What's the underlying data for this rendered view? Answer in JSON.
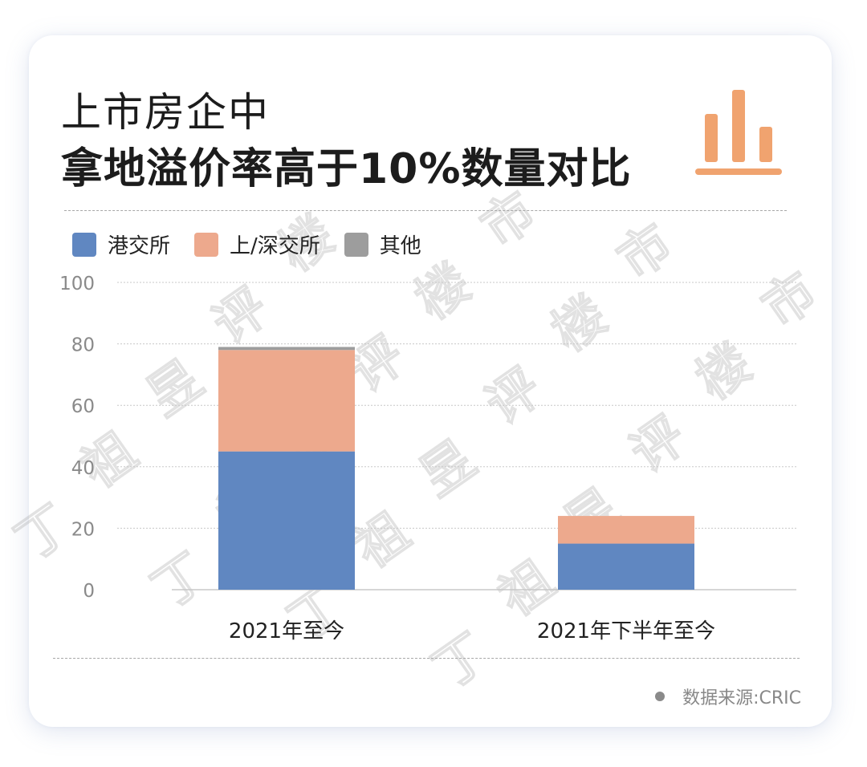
{
  "title": {
    "line1": "上市房企中",
    "line2": "拿地溢价率高于10%数量对比"
  },
  "icons": {
    "title_icon": "bar-chart-icon"
  },
  "colors": {
    "hk": "#6087c1",
    "sz_sh": "#eda98d",
    "other": "#9d9d9d",
    "accent": "#f0a36f",
    "grid": "#c8c8c8",
    "tick_text": "#8a8a8a"
  },
  "chart_data": {
    "type": "bar",
    "stacked": true,
    "categories": [
      "2021年至今",
      "2021年下半年至今"
    ],
    "series": [
      {
        "name": "港交所",
        "values": [
          45,
          15
        ]
      },
      {
        "name": "上/深交所",
        "values": [
          33,
          9
        ]
      },
      {
        "name": "其他",
        "values": [
          1,
          0
        ]
      }
    ],
    "yticks": [
      "0",
      "20",
      "40",
      "60",
      "80",
      "100"
    ],
    "ylim": [
      0,
      100
    ],
    "grid": true,
    "legend_position": "top-left"
  },
  "source": {
    "text": "数据来源:CRIC"
  },
  "watermark": {
    "chars": [
      "丁",
      "祖",
      "昱",
      "评",
      "楼",
      "市"
    ]
  }
}
